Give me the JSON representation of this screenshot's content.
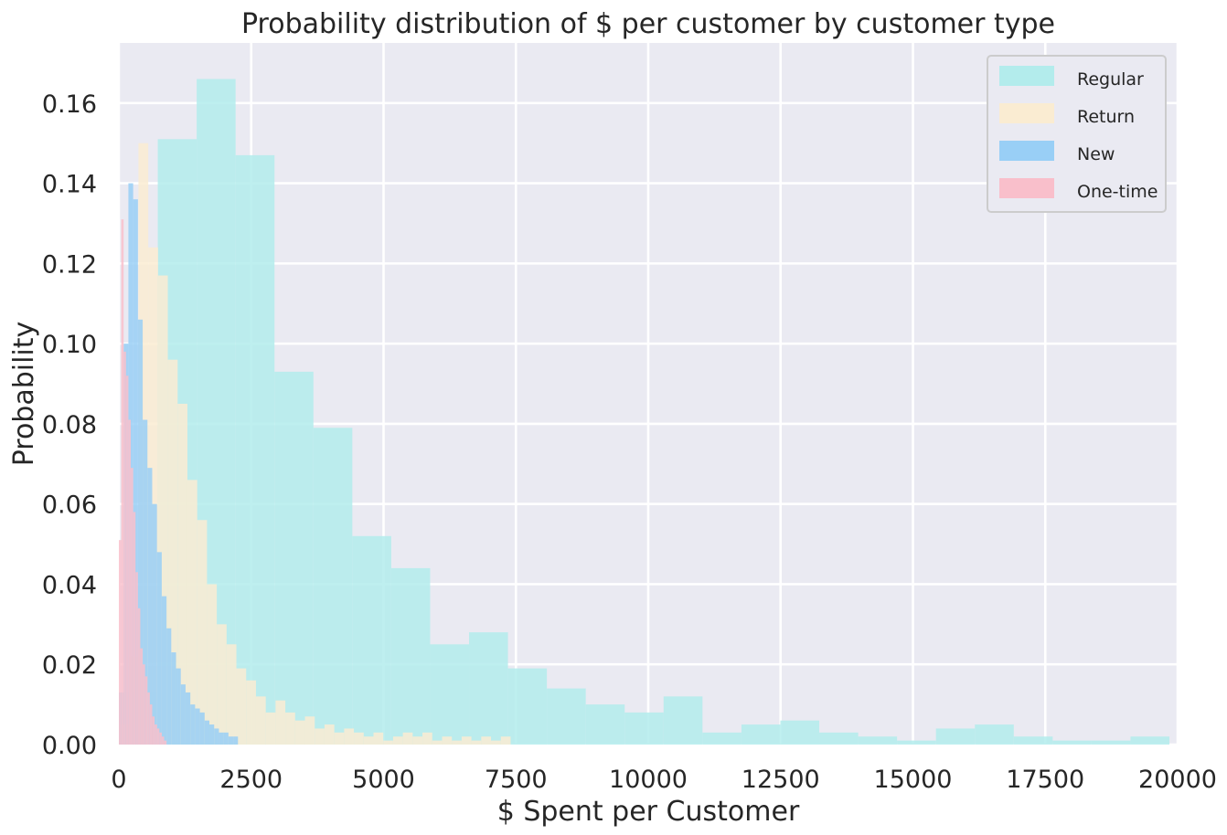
{
  "chart_data": {
    "type": "histogram",
    "title": "Probability distribution of $ per customer by customer type",
    "xlabel": "$ Spent per Customer",
    "ylabel": "Probability",
    "xlim": [
      0,
      20000
    ],
    "ylim": [
      0,
      0.175
    ],
    "x_ticks": [
      0,
      2500,
      5000,
      7500,
      10000,
      12500,
      15000,
      17500,
      20000
    ],
    "y_ticks": [
      "0.00",
      "0.02",
      "0.04",
      "0.06",
      "0.08",
      "0.10",
      "0.12",
      "0.14",
      "0.16"
    ],
    "grid": true,
    "legend_position": "top-right",
    "series": [
      {
        "name": "Regular",
        "color": "#b3ecec",
        "bin_start": 0,
        "bin_width": 735,
        "values": [
          0.013,
          0.151,
          0.166,
          0.147,
          0.093,
          0.079,
          0.052,
          0.044,
          0.025,
          0.028,
          0.019,
          0.014,
          0.01,
          0.008,
          0.012,
          0.003,
          0.005,
          0.006,
          0.003,
          0.002,
          0.001,
          0.004,
          0.005,
          0.002,
          0.001,
          0.001,
          0.002
        ]
      },
      {
        "name": "Return",
        "color": "#faecd2",
        "bin_start": 0,
        "bin_width": 185,
        "values": [
          0.005,
          0.022,
          0.15,
          0.124,
          0.117,
          0.096,
          0.085,
          0.066,
          0.056,
          0.04,
          0.03,
          0.025,
          0.019,
          0.016,
          0.012,
          0.008,
          0.011,
          0.008,
          0.006,
          0.007,
          0.004,
          0.005,
          0.003,
          0.004,
          0.003,
          0.002,
          0.003,
          0.001,
          0.002,
          0.003,
          0.002,
          0.003,
          0.001,
          0.002,
          0.001,
          0.002,
          0.001,
          0.002,
          0.001,
          0.002
        ]
      },
      {
        "name": "New",
        "color": "#99cff6",
        "bin_start": 0,
        "bin_width": 90,
        "values": [
          0.013,
          0.1,
          0.14,
          0.136,
          0.106,
          0.081,
          0.069,
          0.06,
          0.048,
          0.037,
          0.029,
          0.023,
          0.019,
          0.015,
          0.013,
          0.01,
          0.009,
          0.008,
          0.006,
          0.005,
          0.004,
          0.003,
          0.003,
          0.002,
          0.002
        ]
      },
      {
        "name": "One-time",
        "color": "#f9bfcb",
        "bin_start": 0,
        "bin_width": 45,
        "values": [
          0.051,
          0.131,
          0.098,
          0.092,
          0.081,
          0.069,
          0.058,
          0.043,
          0.034,
          0.024,
          0.02,
          0.017,
          0.013,
          0.01,
          0.007,
          0.005,
          0.004,
          0.003,
          0.002,
          0.001
        ]
      }
    ]
  }
}
